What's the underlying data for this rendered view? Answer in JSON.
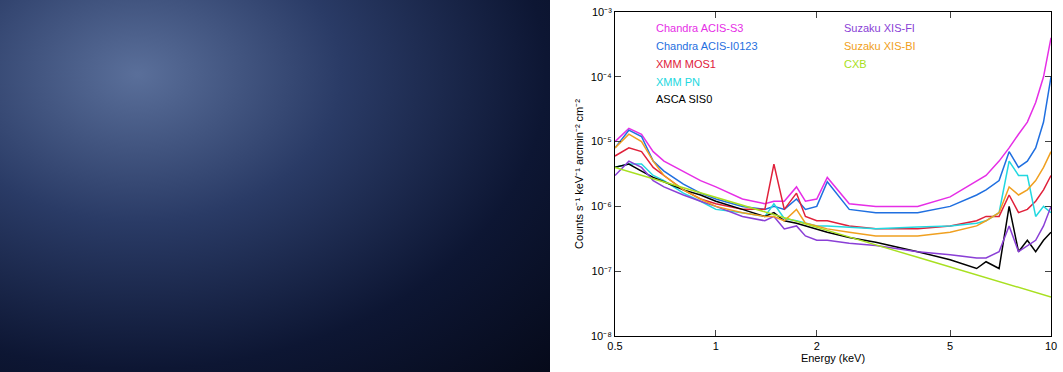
{
  "chart_data": {
    "type": "line",
    "x_label": "Energy (keV)",
    "y_label": "Counts s⁻¹ keV⁻¹ arcmin⁻² cm⁻²",
    "log": true,
    "grid": false,
    "xlim": [
      0.5,
      10
    ],
    "ylim": [
      1e-08,
      0.001
    ],
    "xticks": [
      0.5,
      1,
      2,
      5,
      10
    ],
    "yticks": [
      {
        "value": 1e-08,
        "label": "10⁻⁸"
      },
      {
        "value": 1e-07,
        "label": "10⁻⁷"
      },
      {
        "value": 1e-06,
        "label": "10⁻⁶"
      },
      {
        "value": 1e-05,
        "label": "10⁻⁵"
      },
      {
        "value": 0.0001,
        "label": "10⁻⁴"
      },
      {
        "value": 0.001,
        "label": "10⁻³"
      }
    ],
    "x": [
      0.5,
      0.55,
      0.6,
      0.65,
      0.7,
      0.8,
      0.9,
      1.0,
      1.2,
      1.4,
      1.49,
      1.6,
      1.74,
      1.85,
      2.0,
      2.15,
      2.5,
      3,
      4,
      5,
      6,
      6.4,
      7,
      7.5,
      8,
      8.5,
      9,
      9.5,
      10
    ],
    "series": [
      {
        "name": "Chandra ACIS-S3",
        "color": "#e62ee6",
        "values": [
          1e-05,
          1.6e-05,
          1.3e-05,
          7e-06,
          5e-06,
          3.5e-06,
          2.5e-06,
          2e-06,
          1.3e-06,
          1.1e-06,
          1.2e-06,
          1.2e-06,
          2e-06,
          1.2e-06,
          1.3e-06,
          2.8e-06,
          1.1e-06,
          1e-06,
          1e-06,
          1.4e-06,
          2.5e-06,
          3e-06,
          5e-06,
          8e-06,
          1.3e-05,
          2e-05,
          4e-05,
          0.0001,
          0.0004
        ]
      },
      {
        "name": "Chandra ACIS-I0123",
        "color": "#1f6fe0",
        "values": [
          8e-06,
          1.5e-05,
          1.2e-05,
          5e-06,
          3.5e-06,
          2.2e-06,
          1.6e-06,
          1.3e-06,
          1e-06,
          9e-07,
          1e-06,
          9e-07,
          1.3e-06,
          9e-07,
          1e-06,
          2.4e-06,
          9e-07,
          8e-07,
          8e-07,
          1e-06,
          1.5e-06,
          1.8e-06,
          2.5e-06,
          7e-06,
          4e-06,
          5e-06,
          8e-06,
          2e-05,
          0.0001
        ]
      },
      {
        "name": "XMM MOS1",
        "color": "#e0203a",
        "values": [
          6e-06,
          8e-06,
          7e-06,
          4e-06,
          3e-06,
          1.8e-06,
          1.3e-06,
          1.1e-06,
          9e-07,
          9e-07,
          4.5e-06,
          9e-07,
          1.6e-06,
          7e-07,
          6e-07,
          6e-07,
          5e-07,
          4.5e-07,
          4.5e-07,
          5e-07,
          6e-07,
          7e-07,
          7e-07,
          1.5e-06,
          8e-07,
          9e-07,
          1.2e-06,
          1.8e-06,
          3e-06
        ]
      },
      {
        "name": "XMM PN",
        "color": "#22d8e0",
        "values": [
          4e-06,
          4.5e-06,
          4.5e-06,
          3e-06,
          2.5e-06,
          1.6e-06,
          1.2e-06,
          9e-07,
          8e-07,
          7e-07,
          1.1e-06,
          6.5e-07,
          6e-07,
          5.5e-07,
          5e-07,
          5e-07,
          4.8e-07,
          4.5e-07,
          4.8e-07,
          5e-07,
          5.5e-07,
          6e-07,
          8e-07,
          5e-06,
          3e-06,
          3e-06,
          7e-07,
          1e-06,
          8e-07
        ]
      },
      {
        "name": "ASCA SIS0",
        "color": "#000000",
        "values": [
          4e-06,
          4.5e-06,
          3.5e-06,
          2.8e-06,
          2.4e-06,
          1.8e-06,
          1.5e-06,
          1.2e-06,
          9e-07,
          7e-07,
          8e-07,
          6e-07,
          5.5e-07,
          5e-07,
          4.5e-07,
          4e-07,
          3.3e-07,
          2.8e-07,
          2e-07,
          1.5e-07,
          1.1e-07,
          1.4e-07,
          1.1e-07,
          1e-06,
          2e-07,
          3e-07,
          2e-07,
          3e-07,
          4e-07
        ]
      },
      {
        "name": "Suzaku XIS-FI",
        "color": "#8a3fd6",
        "values": [
          3e-06,
          5e-06,
          4e-06,
          2.5e-06,
          2e-06,
          1.5e-06,
          1.2e-06,
          1e-06,
          7e-07,
          6e-07,
          7e-07,
          4.5e-07,
          5e-07,
          3.5e-07,
          3e-07,
          3e-07,
          2.7e-07,
          2.5e-07,
          2e-07,
          1.8e-07,
          1.6e-07,
          1.6e-07,
          2e-07,
          5e-07,
          2e-07,
          2.5e-07,
          3e-07,
          5e-07,
          1e-06
        ]
      },
      {
        "name": "Suzaku XIS-BI",
        "color": "#f0a020",
        "values": [
          8e-06,
          1.3e-05,
          1e-05,
          5e-06,
          3e-06,
          1.8e-06,
          1.3e-06,
          1e-06,
          8e-07,
          7e-07,
          7e-07,
          6e-07,
          9e-07,
          5.5e-07,
          5e-07,
          4.5e-07,
          4e-07,
          3.5e-07,
          3.5e-07,
          4e-07,
          5e-07,
          6e-07,
          8e-07,
          2e-06,
          1.5e-06,
          1.8e-06,
          2.5e-06,
          4e-06,
          7e-06
        ]
      },
      {
        "name": "CXB",
        "color": "#a8e020",
        "values": [
          4e-06,
          3.45e-06,
          3.02e-06,
          2.67e-06,
          2.38e-06,
          1.94e-06,
          1.62e-06,
          1.38e-06,
          1.04e-06,
          8.2e-07,
          7.5e-07,
          6.7e-07,
          5.9e-07,
          5.4e-07,
          4.75e-07,
          4.25e-07,
          3.37e-07,
          2.55e-07,
          1.64e-07,
          1.16e-07,
          8.8e-08,
          7.9e-08,
          6.9e-08,
          6.2e-08,
          5.6e-08,
          5.1e-08,
          4.7e-08,
          4.3e-08,
          4e-08
        ]
      }
    ]
  }
}
